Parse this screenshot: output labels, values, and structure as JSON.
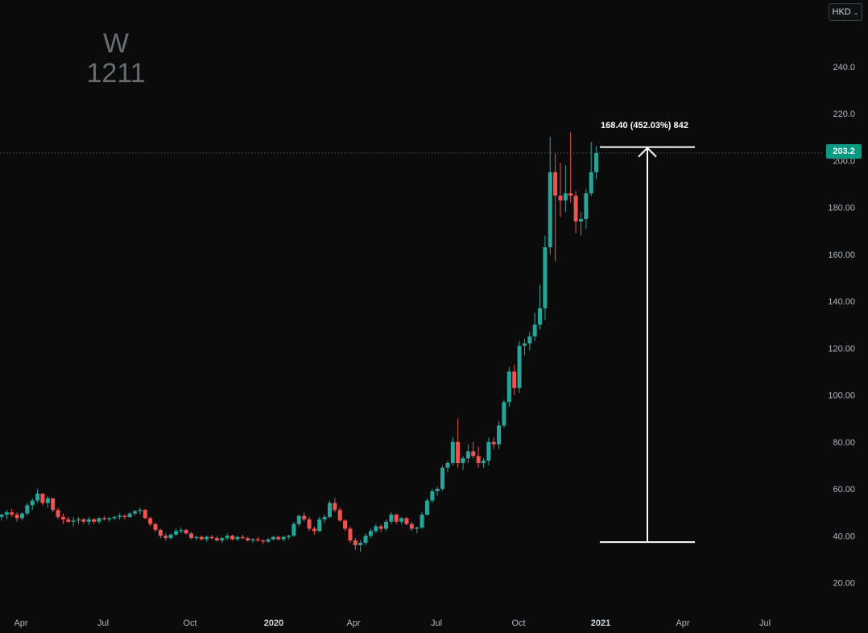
{
  "watermark": {
    "interval": "W",
    "symbol": "1211"
  },
  "currency": {
    "label": "HKD",
    "chevron_icon": "chevron-down-icon"
  },
  "last_price_label": "203.2",
  "measure": {
    "label": "168.40 (452.03%) 842",
    "from": 37.3,
    "to": 205.7,
    "icon": "arrow-up-icon"
  },
  "colors": {
    "up": "#26a69a",
    "down": "#ef5350",
    "background": "#0b0b0c",
    "axis_text": "#b2b5be",
    "price_tag": "#089981",
    "measure_line": "#ffffff"
  },
  "chart_data": {
    "type": "candlestick",
    "y_axis": {
      "ticks": [
        "20.00",
        "40.00",
        "60.00",
        "80.00",
        "100.00",
        "120.00",
        "140.00",
        "160.00",
        "180.00",
        "200.0",
        "220.0",
        "240.0"
      ],
      "range": [
        16,
        256
      ],
      "position": "right"
    },
    "x_axis": {
      "ticks": [
        "Apr",
        "Jul",
        "Oct",
        "2020",
        "Apr",
        "Jul",
        "Oct",
        "2021",
        "Apr",
        "Jul"
      ],
      "bold": [
        "2020",
        "2021"
      ]
    },
    "grid": false,
    "last_price": 203.2,
    "candles": [
      [
        48,
        49.5,
        46.5,
        49
      ],
      [
        49,
        51,
        47,
        50
      ],
      [
        50,
        51.5,
        48,
        49
      ],
      [
        49,
        50,
        46,
        47.5
      ],
      [
        47.5,
        50,
        46.5,
        49.5
      ],
      [
        49.5,
        54,
        48.5,
        53
      ],
      [
        53,
        56,
        51,
        55
      ],
      [
        55,
        60,
        54,
        58
      ],
      [
        58,
        57,
        53,
        54
      ],
      [
        54,
        57,
        52,
        56
      ],
      [
        56,
        55,
        50,
        51
      ],
      [
        51,
        52,
        47,
        48
      ],
      [
        48,
        49.5,
        45,
        47
      ],
      [
        47,
        48,
        45.5,
        46
      ],
      [
        46,
        48,
        44,
        46.5
      ],
      [
        46.5,
        48,
        45,
        47
      ],
      [
        47,
        47.5,
        45,
        46
      ],
      [
        46,
        48,
        44.5,
        47
      ],
      [
        47,
        47.5,
        45,
        46
      ],
      [
        46,
        48,
        45,
        47.5
      ],
      [
        47.5,
        48.5,
        46.5,
        47
      ],
      [
        47,
        48,
        46,
        47.5
      ],
      [
        47.5,
        48.5,
        46.5,
        48
      ],
      [
        48,
        49.5,
        47,
        48.5
      ],
      [
        48.5,
        49,
        47,
        48
      ],
      [
        48,
        50,
        47.5,
        49.5
      ],
      [
        49.5,
        51,
        48.5,
        50.5
      ],
      [
        50.5,
        52,
        49,
        51
      ],
      [
        51,
        51.5,
        47,
        47.5
      ],
      [
        47.5,
        48,
        44,
        45
      ],
      [
        45,
        45.5,
        41.5,
        42.5
      ],
      [
        42.5,
        43,
        39,
        40
      ],
      [
        40,
        41,
        38,
        39
      ],
      [
        39,
        41,
        38.5,
        40.5
      ],
      [
        40.5,
        43,
        40,
        42
      ],
      [
        42,
        43.5,
        41,
        42.5
      ],
      [
        42.5,
        43,
        40.5,
        41
      ],
      [
        41,
        41.5,
        38.5,
        39
      ],
      [
        39,
        40,
        38,
        39.5
      ],
      [
        39.5,
        40,
        38,
        38.5
      ],
      [
        38.5,
        40,
        37.5,
        39.5
      ],
      [
        39.5,
        40.5,
        38.5,
        39
      ],
      [
        39,
        40,
        37.5,
        38
      ],
      [
        38,
        39.5,
        37,
        39
      ],
      [
        39,
        41,
        38,
        40
      ],
      [
        40,
        40.5,
        38,
        38.5
      ],
      [
        38.5,
        40,
        38,
        39.5
      ],
      [
        39.5,
        40.5,
        38.5,
        39
      ],
      [
        39,
        39.5,
        37.5,
        38
      ],
      [
        38,
        39,
        37,
        38.5
      ],
      [
        38.5,
        39.5,
        37.5,
        38
      ],
      [
        38,
        38.5,
        36.5,
        37.5
      ],
      [
        37.5,
        39,
        37,
        38.5
      ],
      [
        38.5,
        40,
        38,
        39.5
      ],
      [
        39.5,
        40,
        38,
        38.5
      ],
      [
        38.5,
        40,
        37.5,
        39.5
      ],
      [
        39.5,
        40.5,
        38.5,
        40
      ],
      [
        40,
        46,
        39.5,
        45
      ],
      [
        45,
        49,
        44,
        48.5
      ],
      [
        48.5,
        50,
        46,
        47
      ],
      [
        47,
        48,
        42,
        43
      ],
      [
        43,
        44,
        40.5,
        42
      ],
      [
        42,
        48,
        41.5,
        47
      ],
      [
        47,
        49,
        45.5,
        48
      ],
      [
        48,
        55,
        47.5,
        54
      ],
      [
        54,
        56,
        50,
        51
      ],
      [
        51,
        52,
        46,
        46.5
      ],
      [
        46.5,
        47,
        42,
        43
      ],
      [
        43,
        44,
        37,
        38
      ],
      [
        38,
        39,
        34,
        36
      ],
      [
        36,
        38,
        33,
        37
      ],
      [
        37,
        41,
        36,
        40
      ],
      [
        40,
        43,
        39,
        42
      ],
      [
        42,
        45,
        41,
        44
      ],
      [
        44,
        45,
        41.5,
        43
      ],
      [
        43,
        47,
        42,
        46
      ],
      [
        46,
        50,
        45,
        49
      ],
      [
        49,
        49.5,
        45,
        46
      ],
      [
        46,
        48,
        45,
        47.5
      ],
      [
        47.5,
        48,
        44.5,
        45
      ],
      [
        45,
        46,
        42,
        43
      ],
      [
        43,
        44,
        41,
        43.5
      ],
      [
        43.5,
        50,
        43,
        49
      ],
      [
        49,
        56,
        48.5,
        55
      ],
      [
        55,
        60,
        54,
        59
      ],
      [
        59,
        61,
        57,
        60
      ],
      [
        60,
        70,
        59,
        69
      ],
      [
        69,
        72,
        67,
        71
      ],
      [
        71,
        82,
        70,
        80
      ],
      [
        80,
        90,
        69,
        71
      ],
      [
        71,
        74,
        68,
        73
      ],
      [
        73,
        79,
        71,
        76
      ],
      [
        76,
        80,
        73,
        74
      ],
      [
        74,
        78,
        69,
        71
      ],
      [
        71,
        73,
        69,
        72
      ],
      [
        72,
        82,
        70,
        80
      ],
      [
        80,
        82,
        77,
        79
      ],
      [
        79,
        89,
        77,
        87
      ],
      [
        87,
        98,
        86,
        97
      ],
      [
        97,
        112,
        95,
        110
      ],
      [
        110,
        113,
        100,
        103
      ],
      [
        103,
        123,
        101,
        121
      ],
      [
        121,
        124,
        117,
        122
      ],
      [
        122,
        127,
        119,
        125
      ],
      [
        125,
        135,
        123,
        130
      ],
      [
        130,
        147,
        128,
        137
      ],
      [
        137,
        168,
        132,
        163
      ],
      [
        163,
        210,
        160,
        195
      ],
      [
        195,
        203,
        157,
        185
      ],
      [
        185,
        199,
        176,
        183
      ],
      [
        183,
        198,
        178,
        186
      ],
      [
        186,
        212,
        182,
        185
      ],
      [
        185,
        187,
        169,
        174
      ],
      [
        174,
        178,
        168,
        175
      ],
      [
        175,
        188,
        171,
        186
      ],
      [
        186,
        208,
        185,
        195
      ],
      [
        195,
        206,
        192,
        203.2
      ]
    ]
  }
}
